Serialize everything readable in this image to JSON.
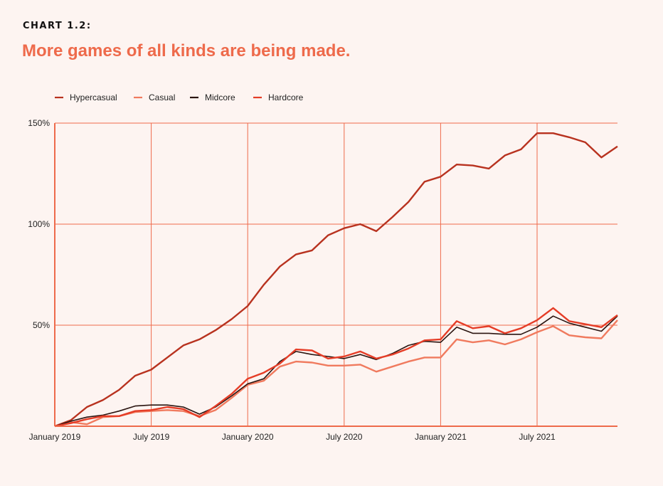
{
  "header": {
    "label": "CHART 1.2:",
    "title": "More games of all kinds are being made."
  },
  "colors": {
    "background": "#fdf4f1",
    "grid": "#ee6a4b",
    "title": "#ee6a4b"
  },
  "chart_data": {
    "type": "line",
    "x": [
      "2019-01",
      "2019-02",
      "2019-03",
      "2019-04",
      "2019-05",
      "2019-06",
      "2019-07",
      "2019-08",
      "2019-09",
      "2019-10",
      "2019-11",
      "2019-12",
      "2020-01",
      "2020-02",
      "2020-03",
      "2020-04",
      "2020-05",
      "2020-06",
      "2020-07",
      "2020-08",
      "2020-09",
      "2020-10",
      "2020-11",
      "2020-12",
      "2021-01",
      "2021-02",
      "2021-03",
      "2021-04",
      "2021-05",
      "2021-06",
      "2021-07",
      "2021-08",
      "2021-09",
      "2021-10",
      "2021-11",
      "2021-12"
    ],
    "x_tick_labels": [
      {
        "x": "2019-01",
        "label": "January 2019"
      },
      {
        "x": "2019-07",
        "label": "July 2019"
      },
      {
        "x": "2020-01",
        "label": "January 2020"
      },
      {
        "x": "2020-07",
        "label": "July 2020"
      },
      {
        "x": "2021-01",
        "label": "January 2021"
      },
      {
        "x": "2021-07",
        "label": "July 2021"
      }
    ],
    "y_ticks": [
      {
        "value": 50,
        "label": "50%"
      },
      {
        "value": 100,
        "label": "100%"
      },
      {
        "value": 150,
        "label": "150%"
      }
    ],
    "ylim": [
      0,
      150
    ],
    "grid": true,
    "legend_position": "top-left",
    "series": [
      {
        "name": "Hypercasual",
        "color": "#b8321f",
        "values": [
          0,
          3,
          9.5,
          13,
          18,
          25,
          28,
          34,
          40,
          43,
          47.5,
          53,
          59.5,
          70,
          79,
          85,
          87,
          94.5,
          98,
          100,
          96.5,
          103.5,
          111,
          121,
          123.5,
          129.5,
          129,
          127.5,
          134,
          137,
          145,
          145,
          143,
          140.5,
          133,
          138.5
        ]
      },
      {
        "name": "Casual",
        "color": "#f07a5e",
        "values": [
          0,
          2,
          1,
          4.5,
          5,
          7,
          7.5,
          8,
          7.5,
          5,
          8,
          14,
          20.5,
          22.5,
          29.5,
          32,
          31.5,
          30,
          30,
          30.5,
          27,
          29.5,
          32,
          34,
          34,
          43,
          41.5,
          42.5,
          40.5,
          43,
          46.5,
          49.5,
          45,
          44,
          43.5,
          52.5
        ]
      },
      {
        "name": "Midcore",
        "color": "#2a1410",
        "values": [
          0,
          2.5,
          4.5,
          5.5,
          7.5,
          10,
          10.5,
          10.5,
          9.5,
          6,
          9.5,
          15,
          21,
          23.5,
          32,
          37,
          35.5,
          34.5,
          33.5,
          35.5,
          33,
          36,
          40,
          42,
          41.5,
          49,
          46,
          46,
          45.5,
          45.5,
          49,
          54.5,
          51,
          49,
          47,
          54.5
        ]
      },
      {
        "name": "Hardcore",
        "color": "#e53d27",
        "values": [
          0,
          1.5,
          3.5,
          5,
          5,
          7.5,
          8,
          9.5,
          8.5,
          4.5,
          10,
          16,
          23.5,
          26.5,
          31,
          38,
          37.5,
          33.5,
          34.5,
          37,
          33.5,
          35.5,
          38.5,
          42.5,
          43,
          52,
          48.5,
          49.5,
          46,
          48.5,
          52.5,
          58.5,
          52,
          50.5,
          49,
          55
        ]
      }
    ]
  }
}
